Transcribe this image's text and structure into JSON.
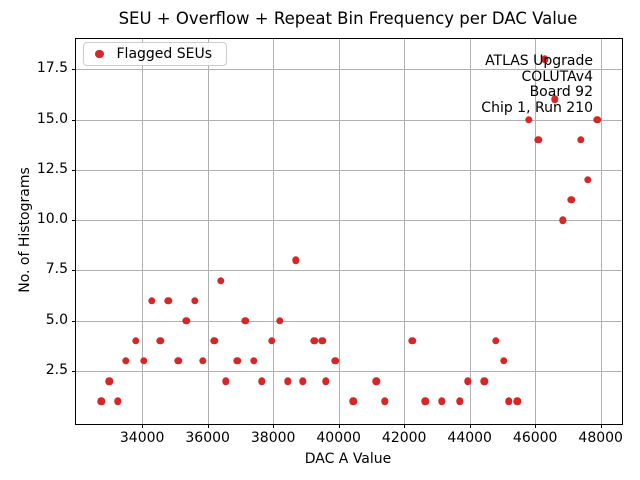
{
  "title": "SEU + Overflow + Repeat Bin Frequency per DAC Value",
  "legend": {
    "label": "Flagged SEUs"
  },
  "annotation": {
    "lines": [
      "ATLAS Upgrade",
      "COLUTAv4",
      "Board 92",
      "Chip 1, Run 210"
    ]
  },
  "colors": {
    "marker": "#d62728",
    "grid": "#b0b0b0",
    "spine": "#000000",
    "background": "#ffffff",
    "legend_border": "#cccccc"
  },
  "chart_data": {
    "type": "scatter",
    "title": "SEU + Overflow + Repeat Bin Frequency per DAC Value",
    "xlabel": "DAC A Value",
    "ylabel": "No. of Histograms",
    "xlim": [
      31980,
      48650
    ],
    "ylim": [
      -0.13,
      19.0
    ],
    "x_ticks": [
      34000,
      36000,
      38000,
      40000,
      42000,
      44000,
      46000,
      48000
    ],
    "y_ticks": [
      2.5,
      5.0,
      7.5,
      10.0,
      12.5,
      15.0,
      17.5
    ],
    "grid": true,
    "legend_position": "upper left",
    "series": [
      {
        "name": "Flagged SEUs",
        "color": "#d62728",
        "points": [
          [
            32750,
            1
          ],
          [
            33000,
            2
          ],
          [
            33250,
            1
          ],
          [
            33500,
            3
          ],
          [
            33800,
            4
          ],
          [
            34050,
            3
          ],
          [
            34300,
            6
          ],
          [
            34550,
            4
          ],
          [
            34800,
            6
          ],
          [
            35100,
            3
          ],
          [
            35350,
            5
          ],
          [
            35600,
            6
          ],
          [
            35850,
            3
          ],
          [
            36200,
            4
          ],
          [
            36400,
            7
          ],
          [
            36550,
            2
          ],
          [
            36900,
            3
          ],
          [
            37150,
            5
          ],
          [
            37400,
            3
          ],
          [
            37650,
            2
          ],
          [
            37950,
            4
          ],
          [
            38200,
            5
          ],
          [
            38450,
            2
          ],
          [
            38700,
            8
          ],
          [
            38900,
            2
          ],
          [
            39250,
            4
          ],
          [
            39500,
            4
          ],
          [
            39600,
            2
          ],
          [
            39900,
            3
          ],
          [
            40450,
            1
          ],
          [
            41150,
            2
          ],
          [
            41400,
            1
          ],
          [
            42250,
            4
          ],
          [
            42650,
            1
          ],
          [
            43150,
            1
          ],
          [
            43700,
            1
          ],
          [
            43950,
            2
          ],
          [
            44450,
            2
          ],
          [
            44800,
            4
          ],
          [
            45050,
            3
          ],
          [
            45200,
            1
          ],
          [
            45450,
            1
          ],
          [
            45800,
            15
          ],
          [
            46100,
            14
          ],
          [
            46300,
            18
          ],
          [
            46600,
            16
          ],
          [
            46850,
            10
          ],
          [
            47100,
            11
          ],
          [
            47400,
            14
          ],
          [
            47600,
            12
          ],
          [
            47900,
            15
          ]
        ]
      }
    ]
  }
}
